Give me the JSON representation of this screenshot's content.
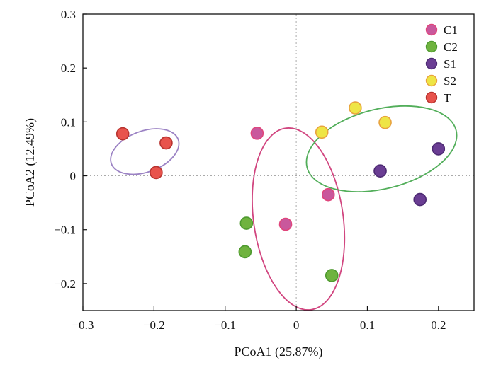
{
  "chart_data": {
    "type": "scatter",
    "title": "",
    "xlabel": "PCoA1 (25.87%)",
    "ylabel": "PCoA2 (12.49%)",
    "xlim": [
      -0.3,
      0.25
    ],
    "ylim": [
      -0.25,
      0.3
    ],
    "x_ticks": [
      -0.3,
      -0.2,
      -0.1,
      0,
      0.1,
      0.2
    ],
    "x_tick_labels": [
      "−0.3",
      "−0.2",
      "−0.1",
      "0",
      "0.1",
      "0.2"
    ],
    "y_ticks": [
      -0.2,
      -0.1,
      0,
      0.1,
      0.2,
      0.3
    ],
    "y_tick_labels": [
      "−0.2",
      "−0.1",
      "0",
      "0.1",
      "0.2",
      "0.3"
    ],
    "grid": false,
    "zero_lines": true,
    "legend_position": "top-right",
    "series": [
      {
        "name": "C1",
        "color": "#c9589c",
        "edge": "#e0457b",
        "points": [
          {
            "x": -0.055,
            "y": 0.079
          },
          {
            "x": 0.045,
            "y": -0.035
          },
          {
            "x": -0.015,
            "y": -0.09
          }
        ]
      },
      {
        "name": "C2",
        "color": "#6fb33f",
        "edge": "#4e9a2f",
        "points": [
          {
            "x": -0.07,
            "y": -0.088
          },
          {
            "x": -0.072,
            "y": -0.141
          },
          {
            "x": 0.05,
            "y": -0.185
          }
        ]
      },
      {
        "name": "S1",
        "color": "#6a3d93",
        "edge": "#4d2a73",
        "points": [
          {
            "x": 0.118,
            "y": 0.009
          },
          {
            "x": 0.2,
            "y": 0.05
          },
          {
            "x": 0.174,
            "y": -0.044
          }
        ]
      },
      {
        "name": "S2",
        "color": "#eee545",
        "edge": "#e8a23e",
        "points": [
          {
            "x": 0.036,
            "y": 0.081
          },
          {
            "x": 0.083,
            "y": 0.126
          },
          {
            "x": 0.125,
            "y": 0.099
          }
        ]
      },
      {
        "name": "T",
        "color": "#e8534c",
        "edge": "#b8332f",
        "points": [
          {
            "x": -0.244,
            "y": 0.078
          },
          {
            "x": -0.183,
            "y": 0.061
          },
          {
            "x": -0.197,
            "y": 0.006
          }
        ]
      }
    ],
    "ellipses": [
      {
        "group": "T",
        "color": "#9b82c4",
        "cx": -0.213,
        "cy": 0.045,
        "rx": 0.05,
        "ry": 0.038,
        "angle_deg": -20
      },
      {
        "group": "C1+C2",
        "color": "#d1457f",
        "cx": 0.003,
        "cy": -0.08,
        "rx": 0.063,
        "ry": 0.17,
        "angle_deg": -8
      },
      {
        "group": "S1+S2",
        "color": "#52ae5a",
        "cx": 0.12,
        "cy": 0.05,
        "rx": 0.108,
        "ry": 0.074,
        "angle_deg": -14
      }
    ]
  }
}
